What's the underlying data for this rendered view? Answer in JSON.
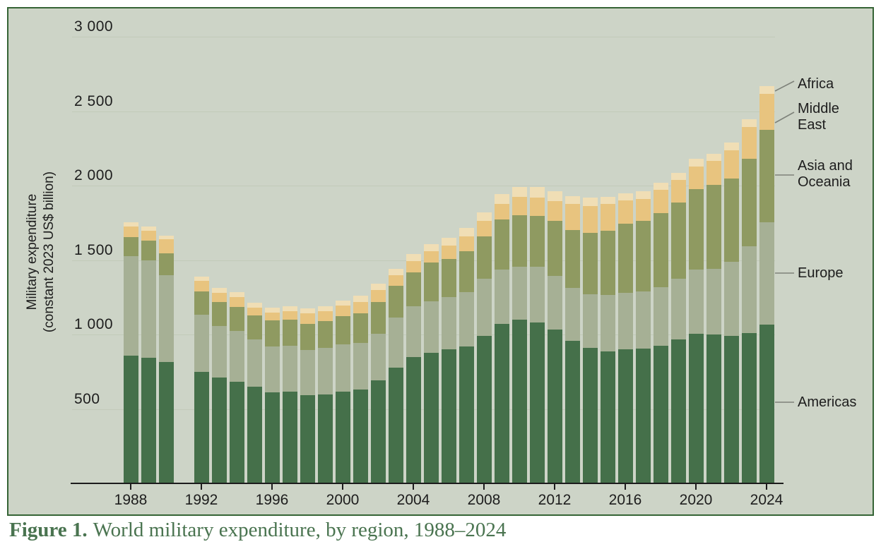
{
  "caption": {
    "label": "Figure 1.",
    "text": "World military expenditure, by region, 1988–2024"
  },
  "y_axis_title": {
    "line1": "Military expenditure",
    "line2": "(constant 2023 US$ billion)"
  },
  "colors": {
    "panel_background": "#cdd4c7",
    "panel_border": "#356435",
    "gridline": "#c2cab9",
    "axis_line": "#1c1c1c",
    "text": "#1d1d1d",
    "caption_text": "#4a7450",
    "leader_line": "#7e827a",
    "americas": "#45704a",
    "europe": "#a6b095",
    "asia_oceania": "#8f9a61",
    "middle_east": "#e8c47f",
    "africa": "#f0deb5"
  },
  "chart_data": {
    "type": "bar",
    "stacked": true,
    "title": "World military expenditure, by region, 1988–2024",
    "xlabel": "",
    "ylabel": "Military expenditure (constant 2023 US$ billion)",
    "ylim": [
      0,
      3000
    ],
    "grid": true,
    "legend_position": "right",
    "note": "No bar for 1991 (no data)",
    "y_tick_values": [
      3000,
      2500,
      2000,
      1500,
      1000,
      500
    ],
    "y_ticks": [
      "3 000",
      "2 500",
      "2 000",
      "1 500",
      "1 000",
      "500"
    ],
    "x_tick_years": [
      1988,
      1992,
      1996,
      2000,
      2004,
      2008,
      2012,
      2016,
      2020,
      2024
    ],
    "x_tick_labels": [
      "1988",
      "1992",
      "1996",
      "2000",
      "2004",
      "2008",
      "2012",
      "2016",
      "2020",
      "2024"
    ],
    "categories": [
      1988,
      1989,
      1990,
      1992,
      1993,
      1994,
      1995,
      1996,
      1997,
      1998,
      1999,
      2000,
      2001,
      2002,
      2003,
      2004,
      2005,
      2006,
      2007,
      2008,
      2009,
      2010,
      2011,
      2012,
      2013,
      2014,
      2015,
      2016,
      2017,
      2018,
      2019,
      2020,
      2021,
      2022,
      2023,
      2024
    ],
    "series": [
      {
        "name": "Americas",
        "color_key": "americas",
        "values": [
          860,
          845,
          814,
          750,
          710,
          682,
          649,
          611,
          616,
          592,
          597,
          616,
          630,
          691,
          775,
          846,
          879,
          902,
          917,
          990,
          1070,
          1100,
          1082,
          1034,
          958,
          908,
          888,
          900,
          903,
          923,
          967,
          1005,
          1000,
          990,
          1010,
          1066
        ]
      },
      {
        "name": "Europe",
        "color_key": "europe",
        "values": [
          665,
          652,
          585,
          383,
          349,
          343,
          316,
          310,
          306,
          302,
          315,
          316,
          311,
          316,
          338,
          343,
          344,
          348,
          367,
          386,
          367,
          354,
          371,
          357,
          357,
          360,
          375,
          381,
          385,
          395,
          408,
          431,
          441,
          500,
          580,
          687
        ]
      },
      {
        "name": "Asia and Oceania",
        "color_key": "asia_oceania",
        "values": [
          130,
          135,
          145,
          156,
          160,
          161,
          161,
          174,
          179,
          179,
          180,
          190,
          202,
          212,
          213,
          226,
          259,
          256,
          273,
          285,
          334,
          348,
          344,
          371,
          388,
          415,
          432,
          462,
          477,
          495,
          512,
          540,
          564,
          559,
          592,
          621
        ]
      },
      {
        "name": "Middle East",
        "color_key": "middle_east",
        "values": [
          68,
          65,
          95,
          70,
          62,
          66,
          56,
          53,
          56,
          70,
          65,
          70,
          75,
          80,
          71,
          80,
          76,
          89,
          103,
          100,
          108,
          122,
          122,
          136,
          172,
          180,
          180,
          159,
          147,
          159,
          151,
          152,
          163,
          189,
          210,
          240
        ]
      },
      {
        "name": "Africa",
        "color_key": "africa",
        "values": [
          30,
          30,
          26,
          30,
          31,
          33,
          33,
          33,
          33,
          33,
          33,
          36,
          44,
          42,
          46,
          47,
          47,
          52,
          56,
          60,
          66,
          66,
          70,
          66,
          55,
          55,
          50,
          48,
          48,
          48,
          47,
          52,
          47,
          52,
          52,
          52
        ]
      }
    ],
    "legend": [
      {
        "label": "Africa",
        "lines": [
          "Africa"
        ]
      },
      {
        "label": "Middle East",
        "lines": [
          "Middle",
          "East"
        ]
      },
      {
        "label": "Asia and Oceania",
        "lines": [
          "Asia and",
          "Oceania"
        ]
      },
      {
        "label": "Europe",
        "lines": [
          "Europe"
        ]
      },
      {
        "label": "Americas",
        "lines": [
          "Americas"
        ]
      }
    ]
  }
}
